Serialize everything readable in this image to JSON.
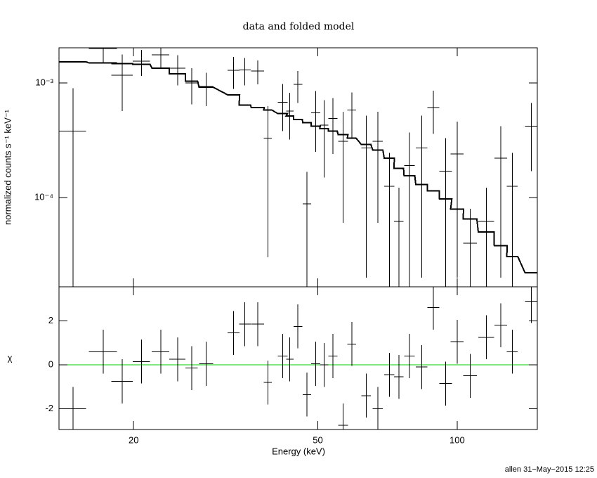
{
  "footer": "allen 31−May−2015 12:25",
  "chart_data": [
    {
      "type": "errorbar",
      "title": "data and folded model",
      "ylabel": "normalized counts s⁻¹ keV⁻¹",
      "xscale": "log",
      "yscale": "log",
      "xlim": [
        13.8,
        149
      ],
      "ylim": [
        1.66e-05,
        0.00203
      ],
      "yticks": [
        {
          "value": 0.0001,
          "label": "10⁻⁴"
        },
        {
          "value": 0.001,
          "label": "10⁻³"
        }
      ],
      "color": "#000000",
      "x": [
        14.8,
        17.2,
        18.9,
        20.8,
        22.9,
        24.9,
        26.7,
        28.7,
        32.9,
        34.8,
        37.1,
        39.0,
        42.0,
        43.5,
        45.3,
        47.4,
        49.5,
        51.6,
        53.9,
        56.7,
        59.2,
        63.6,
        67.4,
        71.4,
        74.8,
        78.9,
        83.8,
        88.9,
        94.5,
        100,
        106.7,
        115.6,
        124.3,
        131.6,
        144.6
      ],
      "xerr": [
        1.0,
        1.2,
        1.0,
        0.9,
        1.0,
        1.0,
        0.8,
        1.0,
        1.0,
        1.0,
        1.2,
        0.8,
        1.0,
        0.8,
        1.0,
        1.0,
        1.1,
        1.1,
        1.2,
        1.4,
        1.3,
        1.5,
        1.7,
        1.8,
        1.8,
        2.1,
        2.4,
        2.6,
        2.9,
        3.2,
        3.6,
        4.5,
        4.0,
        3.6,
        4.4
      ],
      "values": [
        0.00038,
        0.002,
        0.00117,
        0.00155,
        0.00176,
        0.00135,
        0.001,
        0.00093,
        0.00129,
        0.0013,
        0.00127,
        0.00033,
        0.00068,
        0.00057,
        0.00097,
        8.8e-05,
        0.00055,
        0.00043,
        0.00049,
        0.00031,
        0.00058,
        0.00027,
        0.00031,
        0.000125,
        6.2e-05,
        0.00019,
        0.00027,
        0.00061,
        0.00017,
        0.00024,
        4e-05,
        6.2e-05,
        0.00022,
        0.000125,
        0.00042
      ],
      "errors": [
        0.00052,
        0.0005,
        0.0006,
        0.0004,
        0.0004,
        0.0004,
        0.00035,
        0.0003,
        0.0004,
        0.00035,
        0.0003,
        0.0003,
        0.0003,
        0.00025,
        0.0003,
        8e-05,
        0.0003,
        0.00028,
        0.00025,
        0.00025,
        0.00025,
        0.00025,
        0.00025,
        0.00012,
        6e-05,
        0.00018,
        0.00025,
        0.00025,
        0.00016,
        0.00022,
        4e-05,
        6e-05,
        0.0002,
        0.00012,
        0.00025
      ],
      "model": [
        0.00153,
        0.0015,
        0.00148,
        0.00146,
        0.00135,
        0.0012,
        0.00104,
        0.00092,
        0.00079,
        0.00064,
        0.00061,
        0.00058,
        0.00054,
        0.000515,
        0.00048,
        0.00045,
        0.00042,
        0.0004,
        0.00038,
        0.000355,
        0.00033,
        0.00029,
        0.00026,
        0.00022,
        0.00018,
        0.000155,
        0.00013,
        0.000114,
        9.7e-05,
        7.9e-05,
        6.5e-05,
        5e-05,
        3.8e-05,
        3.05e-05,
        2.2e-05
      ]
    },
    {
      "type": "residual",
      "xlabel": "Energy (keV)",
      "ylabel": "χ",
      "xticks": [
        20,
        50,
        100
      ],
      "ylim": [
        -2.94,
        3.55
      ],
      "yticks": [
        -2,
        0,
        2
      ],
      "reference_line": 0,
      "reference_color": "#00cc00",
      "color": "#000000",
      "values": [
        -2.0,
        0.6,
        -0.75,
        0.15,
        0.6,
        0.25,
        -0.15,
        0.05,
        1.45,
        1.85,
        1.85,
        -0.8,
        0.4,
        0.25,
        1.75,
        -1.35,
        0.05,
        0.0,
        0.4,
        -2.75,
        0.95,
        -1.4,
        -2.0,
        -0.45,
        -0.55,
        0.4,
        -0.1,
        2.6,
        -0.85,
        1.05,
        -0.5,
        1.25,
        1.8,
        0.6,
        2.9
      ],
      "errors": [
        1,
        1,
        1,
        1,
        1,
        1,
        1,
        1,
        1,
        1,
        1,
        1,
        1,
        1,
        1,
        1,
        1,
        1,
        1,
        1,
        1,
        1,
        1,
        1,
        1,
        1,
        1,
        1,
        1,
        1,
        1,
        1,
        1,
        1,
        1
      ]
    }
  ]
}
